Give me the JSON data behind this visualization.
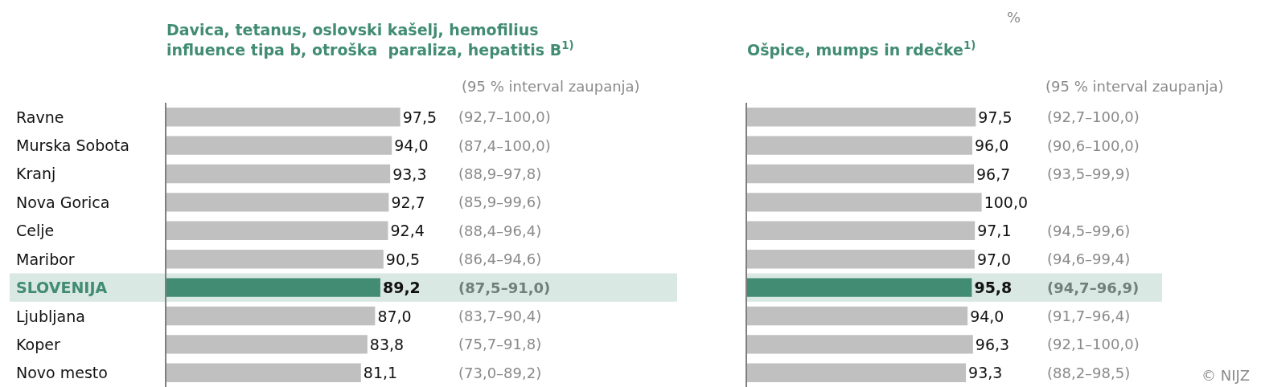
{
  "chart_data": [
    {
      "type": "bar",
      "orientation": "horizontal",
      "title": "Davica, tetanus, oslovski kašelj, hemofilius\ninfluence tipa b, otroška  paraliza, hepatitis B$^{1)}$",
      "categories": [
        "Ravne",
        "Murska Sobota",
        "Kranj",
        "Nova Gorica",
        "Celje",
        "Maribor",
        "SLOVENIJA",
        "Ljubljana",
        "Koper",
        "Novo mesto"
      ],
      "values": [
        97.5,
        94.0,
        93.3,
        92.7,
        92.4,
        90.5,
        89.2,
        87.0,
        83.8,
        81.1
      ],
      "colors": [
        "#c0c0c0",
        "#c0c0c0",
        "#c0c0c0",
        "#c0c0c0",
        "#c0c0c0",
        "#c0c0c0",
        "#418c73",
        "#c0c0c0",
        "#c0c0c0",
        "#c0c0c0"
      ],
      "value_labels": [
        "97,5",
        "94,0",
        "93,3",
        "92,7",
        "92,4",
        "90,5",
        "89,2",
        "87,0",
        "83,8",
        "81,1"
      ],
      "tick_labels": "y",
      "bands": [
        {
          "axis": "y",
          "from": "SLOVENIJA",
          "to": "SLOVENIJA",
          "color": "#d9e8e3"
        }
      ],
      "annotations": [
        "(95 % interval zaupanja)",
        "(92,7–100,0)",
        "(87,4–100,0)",
        "(88,9–97,8)",
        "(85,9–99,6)",
        "(88,4–96,4)",
        "(86,4–94,6)",
        "(87,5–91,0)",
        "(83,7–90,4)",
        "(75,7–91,8)",
        "(73,0–89,2)"
      ]
    },
    {
      "type": "bar",
      "orientation": "horizontal",
      "title": "Ošpice, mumps in rdečke$^{1)}$",
      "categories": [
        "Ravne",
        "Murska Sobota",
        "Kranj",
        "Nova Gorica",
        "Celje",
        "Maribor",
        "SLOVENIJA",
        "Ljubljana",
        "Koper",
        "Novo mesto"
      ],
      "values": [
        97.5,
        96.0,
        96.7,
        100.0,
        97.1,
        97.0,
        95.8,
        94.0,
        96.3,
        93.3
      ],
      "colors": [
        "#c0c0c0",
        "#c0c0c0",
        "#c0c0c0",
        "#c0c0c0",
        "#c0c0c0",
        "#c0c0c0",
        "#418c73",
        "#c0c0c0",
        "#c0c0c0",
        "#c0c0c0"
      ],
      "value_labels": [
        "97,5",
        "96,0",
        "96,7",
        "100,0",
        "97,1",
        "97,0",
        "95,8",
        "94,0",
        "96,3",
        "93,3"
      ],
      "tick_labels": false,
      "bands": [
        {
          "axis": "y",
          "from": "SLOVENIJA",
          "to": "SLOVENIJA",
          "color": "#d9e8e3"
        }
      ],
      "annotations": [
        "(95 % interval zaupanja)",
        "%",
        "© NIJZ",
        "(92,7–100,0)",
        "(90,6–100,0)",
        "(93,5–99,9)",
        "(94,5–99,6)",
        "(94,6–99,4)",
        "(94,7–96,9)",
        "(91,7–96,4)",
        "(92,1–100,0)",
        "(88,2–98,5)"
      ]
    }
  ]
}
